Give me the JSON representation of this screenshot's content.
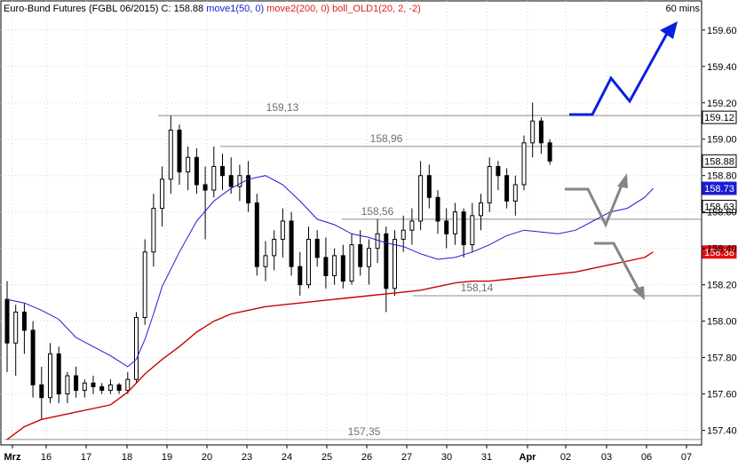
{
  "header": {
    "title": "Euro-Bund Futures (FGBL 06/2015)",
    "close_label": "C: 158.88",
    "indicators": [
      {
        "label": "move1(50, 0)",
        "color": "#1c1cd4"
      },
      {
        "label": "move2(200, 0)",
        "color": "#e01c1c"
      },
      {
        "label": "boll_OLD1(20, 2, -2)",
        "color": "#e01c1c"
      }
    ],
    "timeframe": "60 mins"
  },
  "colors": {
    "candle": "#000000",
    "ma50": "#1c1cd4",
    "ma200": "#cc0000",
    "level_line": "#8c8c8c",
    "arrow_up": "#0b1fe0",
    "arrow_grey": "#858585",
    "grid": "#d8d8d8"
  },
  "chart_data": {
    "type": "candlestick",
    "title": "Euro-Bund Futures (FGBL 06/2015)",
    "timeframe": "60 mins",
    "xlabel": "",
    "ylabel": "",
    "ylim": [
      157.32,
      159.76
    ],
    "x_ticks": [
      "Mrz",
      "16",
      "17",
      "18",
      "19",
      "20",
      "23",
      "24",
      "25",
      "26",
      "27",
      "30",
      "31",
      "Apr",
      "02",
      "03",
      "06",
      "07"
    ],
    "y_ticks": [
      "157.40",
      "157.60",
      "157.80",
      "158.00",
      "158.20",
      "158.40",
      "158.60",
      "158.80",
      "159.00",
      "159.20",
      "159.40",
      "159.60"
    ],
    "levels": [
      {
        "label": "159,13",
        "value": 159.13
      },
      {
        "label": "158,96",
        "value": 158.96
      },
      {
        "label": "158,56",
        "value": 158.56
      },
      {
        "label": "158,14",
        "value": 158.14
      },
      {
        "label": "157,35",
        "value": 157.35
      }
    ],
    "price_tags": [
      {
        "label": "159.12",
        "value": 159.12,
        "style": "white"
      },
      {
        "label": "158.88",
        "value": 158.88,
        "style": "white"
      },
      {
        "label": "158.73",
        "value": 158.73,
        "style": "blue"
      },
      {
        "label": "158.63",
        "value": 158.63,
        "style": "white"
      },
      {
        "label": "158.38",
        "value": 158.38,
        "style": "red"
      }
    ],
    "series": [
      {
        "name": "move1(50, 0)",
        "x": [
          0,
          2,
          4,
          6,
          8,
          10,
          12,
          14,
          15,
          16,
          17,
          18,
          20,
          22,
          24,
          26,
          28,
          30,
          32,
          34,
          36,
          38,
          40,
          42,
          44,
          46,
          48,
          50,
          52,
          54,
          56,
          58,
          60,
          62,
          64,
          66,
          68,
          70,
          72,
          74,
          75
        ],
        "values": [
          158.12,
          158.1,
          158.06,
          158.01,
          157.91,
          157.86,
          157.81,
          157.75,
          157.79,
          157.9,
          158.04,
          158.19,
          158.38,
          158.55,
          158.66,
          158.73,
          158.78,
          158.8,
          158.75,
          158.66,
          158.56,
          158.53,
          158.48,
          158.46,
          158.43,
          158.41,
          158.37,
          158.34,
          158.35,
          158.38,
          158.42,
          158.47,
          158.5,
          158.49,
          158.48,
          158.5,
          158.55,
          158.6,
          158.62,
          158.68,
          158.73
        ]
      },
      {
        "name": "move2(200, 0)",
        "x": [
          0,
          2,
          4,
          6,
          8,
          10,
          12,
          14,
          16,
          18,
          20,
          22,
          24,
          26,
          28,
          30,
          32,
          34,
          36,
          38,
          40,
          42,
          44,
          46,
          48,
          50,
          52,
          54,
          56,
          58,
          60,
          62,
          64,
          66,
          68,
          70,
          72,
          74,
          75
        ],
        "values": [
          157.35,
          157.42,
          157.46,
          157.48,
          157.5,
          157.52,
          157.54,
          157.61,
          157.71,
          157.79,
          157.86,
          157.94,
          158.0,
          158.04,
          158.06,
          158.08,
          158.09,
          158.1,
          158.11,
          158.12,
          158.13,
          158.14,
          158.15,
          158.16,
          158.17,
          158.19,
          158.21,
          158.22,
          158.22,
          158.23,
          158.24,
          158.25,
          158.26,
          158.27,
          158.29,
          158.31,
          158.33,
          158.35,
          158.38
        ]
      }
    ],
    "candles": [
      [
        0,
        158.12,
        158.22,
        157.72,
        157.88
      ],
      [
        1,
        157.88,
        158.09,
        157.7,
        158.05
      ],
      [
        2,
        158.05,
        158.1,
        157.82,
        157.95
      ],
      [
        3,
        157.95,
        158.0,
        157.58,
        157.65
      ],
      [
        4,
        157.65,
        157.75,
        157.46,
        157.58
      ],
      [
        5,
        157.58,
        157.88,
        157.55,
        157.82
      ],
      [
        6,
        157.82,
        157.86,
        157.55,
        157.6
      ],
      [
        7,
        157.6,
        157.72,
        157.55,
        157.7
      ],
      [
        8,
        157.7,
        157.75,
        157.58,
        157.62
      ],
      [
        9,
        157.62,
        157.68,
        157.58,
        157.66
      ],
      [
        10,
        157.66,
        157.7,
        157.6,
        157.64
      ],
      [
        11,
        157.64,
        157.66,
        157.6,
        157.62
      ],
      [
        12,
        157.62,
        157.68,
        157.6,
        157.65
      ],
      [
        13,
        157.65,
        157.66,
        157.6,
        157.62
      ],
      [
        14,
        157.62,
        157.72,
        157.6,
        157.68
      ],
      [
        15,
        157.68,
        158.05,
        157.66,
        158.02
      ],
      [
        16,
        158.02,
        158.45,
        157.98,
        158.38
      ],
      [
        17,
        158.38,
        158.7,
        158.3,
        158.62
      ],
      [
        18,
        158.62,
        158.85,
        158.52,
        158.78
      ],
      [
        19,
        158.78,
        159.13,
        158.7,
        159.05
      ],
      [
        20,
        159.05,
        159.08,
        158.75,
        158.82
      ],
      [
        21,
        158.82,
        158.96,
        158.72,
        158.9
      ],
      [
        22,
        158.9,
        158.95,
        158.7,
        158.75
      ],
      [
        23,
        158.75,
        158.85,
        158.45,
        158.72
      ],
      [
        24,
        158.72,
        158.96,
        158.68,
        158.85
      ],
      [
        25,
        158.85,
        158.92,
        158.72,
        158.8
      ],
      [
        26,
        158.8,
        158.9,
        158.7,
        158.74
      ],
      [
        27,
        158.74,
        158.86,
        158.66,
        158.8
      ],
      [
        28,
        158.8,
        158.88,
        158.6,
        158.65
      ],
      [
        29,
        158.65,
        158.7,
        158.25,
        158.3
      ],
      [
        30,
        158.3,
        158.44,
        158.22,
        158.36
      ],
      [
        31,
        158.36,
        158.5,
        158.28,
        158.45
      ],
      [
        32,
        158.45,
        158.62,
        158.35,
        158.55
      ],
      [
        33,
        158.55,
        158.6,
        158.25,
        158.3
      ],
      [
        34,
        158.3,
        158.38,
        158.14,
        158.2
      ],
      [
        35,
        158.2,
        158.52,
        158.18,
        158.45
      ],
      [
        36,
        158.45,
        158.5,
        158.3,
        158.35
      ],
      [
        37,
        158.35,
        158.46,
        158.18,
        158.25
      ],
      [
        38,
        158.25,
        158.4,
        158.2,
        158.36
      ],
      [
        39,
        158.36,
        158.42,
        158.18,
        158.22
      ],
      [
        40,
        158.22,
        158.48,
        158.2,
        158.42
      ],
      [
        41,
        158.42,
        158.5,
        158.25,
        158.3
      ],
      [
        42,
        158.3,
        158.45,
        158.2,
        158.4
      ],
      [
        43,
        158.4,
        158.56,
        158.32,
        158.48
      ],
      [
        44,
        158.48,
        158.52,
        158.05,
        158.18
      ],
      [
        45,
        158.18,
        158.5,
        158.14,
        158.45
      ],
      [
        46,
        158.45,
        158.58,
        158.38,
        158.5
      ],
      [
        47,
        158.5,
        158.62,
        158.42,
        158.55
      ],
      [
        48,
        158.55,
        158.88,
        158.5,
        158.8
      ],
      [
        49,
        158.8,
        158.86,
        158.62,
        158.68
      ],
      [
        50,
        158.68,
        158.72,
        158.48,
        158.55
      ],
      [
        51,
        158.55,
        158.62,
        158.4,
        158.48
      ],
      [
        52,
        158.48,
        158.65,
        158.42,
        158.6
      ],
      [
        53,
        158.6,
        158.62,
        158.35,
        158.42
      ],
      [
        54,
        158.42,
        158.65,
        158.38,
        158.58
      ],
      [
        55,
        158.58,
        158.7,
        158.5,
        158.65
      ],
      [
        56,
        158.65,
        158.9,
        158.6,
        158.85
      ],
      [
        57,
        158.85,
        158.88,
        158.72,
        158.8
      ],
      [
        58,
        158.8,
        158.84,
        158.62,
        158.66
      ],
      [
        59,
        158.66,
        158.8,
        158.58,
        158.75
      ],
      [
        60,
        158.75,
        159.02,
        158.72,
        158.98
      ],
      [
        61,
        158.98,
        159.2,
        158.9,
        159.1
      ],
      [
        62,
        159.1,
        159.12,
        158.92,
        158.98
      ],
      [
        63,
        158.98,
        159.0,
        158.86,
        158.88
      ]
    ]
  }
}
